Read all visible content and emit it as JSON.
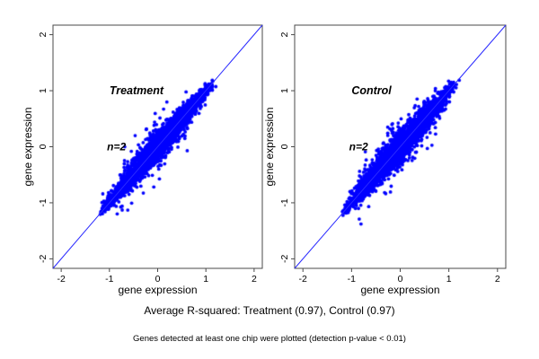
{
  "figure": {
    "caption": "Average R-squared: Treatment (0.97), Control (0.97)",
    "footnote": "Genes detected at least one chip were plotted (detection p-value < 0.01)"
  },
  "colors": {
    "point": "#0000ff",
    "identity_line": "#2a2aff",
    "panel_label": "#7d7d7d",
    "annotation": "#000000",
    "frame": "#4a4a4a",
    "background": "#ffffff"
  },
  "chart_data": [
    {
      "type": "scatter",
      "panel_label": {
        "text": "Treatment",
        "x": -1.0,
        "y": 1.0
      },
      "n_annotation": {
        "text": "n=2",
        "x": -1.05,
        "y": 0.0
      },
      "xlabel": "gene expression",
      "ylabel": "gene expression",
      "xlim": [
        -2.17,
        2.17
      ],
      "ylim": [
        -2.17,
        2.17
      ],
      "xticks": [
        -2,
        -1,
        0,
        1,
        2
      ],
      "yticks": [
        -2,
        -1,
        0,
        1,
        2
      ],
      "grid": false,
      "legend": "none",
      "r_squared": 0.97,
      "identity_line": {
        "slope": 1,
        "intercept": 0
      },
      "points_extent": {
        "min": -1.2,
        "max": 1.2
      },
      "cloud": {
        "n_points": 2800,
        "t_center": -0.02,
        "t_half_range": 1.2,
        "noise_sd": 0.09,
        "fringe_fraction": 0.07,
        "fringe_scale": 2.1,
        "outlier_count": 12,
        "seed": 42
      }
    },
    {
      "type": "scatter",
      "panel_label": {
        "text": "Control",
        "x": -1.0,
        "y": 1.0
      },
      "n_annotation": {
        "text": "n=2",
        "x": -1.05,
        "y": 0.0
      },
      "xlabel": "gene expression",
      "ylabel": "gene expression",
      "xlim": [
        -2.17,
        2.17
      ],
      "ylim": [
        -2.17,
        2.17
      ],
      "xticks": [
        -2,
        -1,
        0,
        1,
        2
      ],
      "yticks": [
        -2,
        -1,
        0,
        1,
        2
      ],
      "grid": false,
      "legend": "none",
      "r_squared": 0.97,
      "identity_line": {
        "slope": 1,
        "intercept": 0
      },
      "points_extent": {
        "min": -1.2,
        "max": 1.2
      },
      "cloud": {
        "n_points": 2900,
        "t_center": -0.02,
        "t_half_range": 1.2,
        "noise_sd": 0.095,
        "fringe_fraction": 0.07,
        "fringe_scale": 2.1,
        "outlier_count": 13,
        "seed": 1337
      }
    }
  ]
}
